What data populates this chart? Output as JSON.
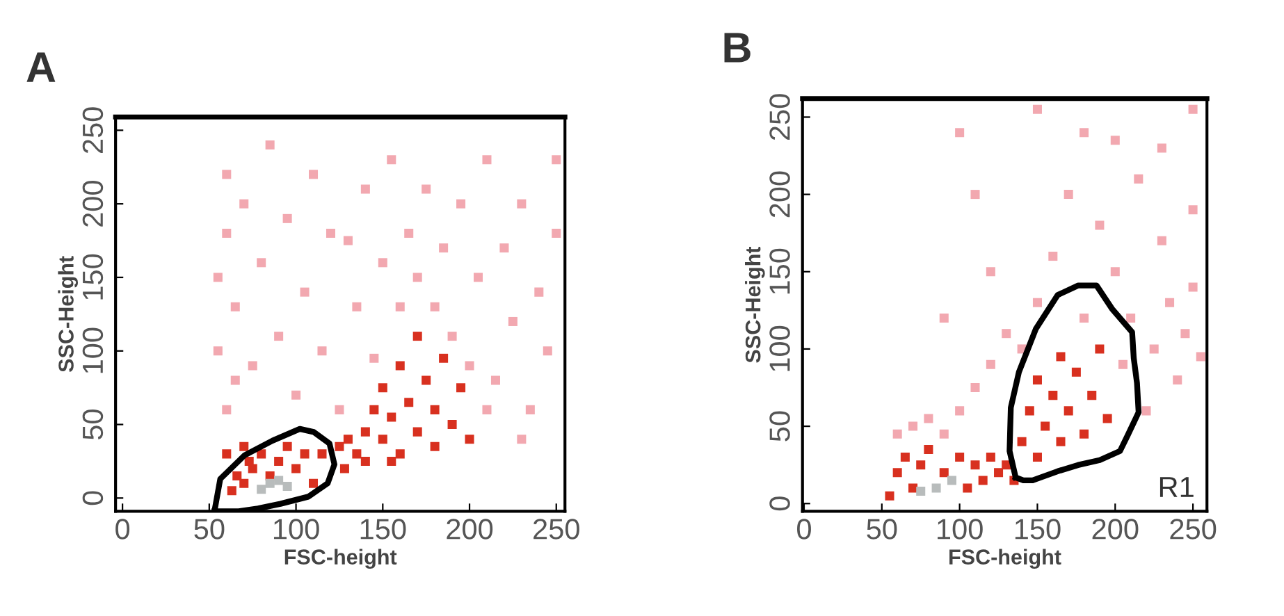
{
  "chart_data": [
    {
      "type": "scatter",
      "title": "A",
      "xlabel": "FSC-height",
      "ylabel": "SSC-Height",
      "xlim": [
        -4,
        255
      ],
      "ylim": [
        -9,
        259
      ],
      "xticks": [
        0,
        50,
        100,
        150,
        200,
        250
      ],
      "yticks": [
        0,
        50,
        100,
        150,
        200,
        250
      ],
      "grid": false,
      "marker": "square",
      "series": [
        {
          "color": "#f2a8b0",
          "x": [
            55,
            55,
            60,
            60,
            65,
            70,
            75,
            80,
            85,
            90,
            95,
            100,
            105,
            110,
            115,
            120,
            125,
            130,
            135,
            140,
            145,
            150,
            155,
            160,
            165,
            170,
            175,
            180,
            185,
            190,
            195,
            200,
            205,
            210,
            215,
            220,
            225,
            230,
            235,
            240,
            245,
            250,
            250,
            230,
            210,
            60,
            65
          ],
          "values": [
            150,
            100,
            220,
            180,
            130,
            200,
            90,
            160,
            240,
            110,
            190,
            70,
            140,
            220,
            100,
            180,
            60,
            175,
            130,
            210,
            95,
            160,
            230,
            130,
            180,
            150,
            210,
            130,
            170,
            110,
            200,
            90,
            150,
            230,
            80,
            170,
            120,
            200,
            60,
            140,
            100,
            180,
            230,
            40,
            60,
            60,
            80
          ]
        },
        {
          "color": "#d8301f",
          "x": [
            63,
            66,
            60,
            73,
            70,
            70,
            75,
            80,
            85,
            90,
            95,
            100,
            105,
            110,
            115,
            128,
            125,
            130,
            135,
            140,
            145,
            150,
            150,
            155,
            160,
            160,
            165,
            170,
            170,
            175,
            180,
            180,
            185,
            190,
            195,
            200,
            140,
            155
          ],
          "values": [
            5,
            15,
            30,
            25,
            10,
            35,
            20,
            30,
            15,
            25,
            35,
            20,
            30,
            10,
            30,
            20,
            35,
            40,
            30,
            45,
            60,
            40,
            75,
            55,
            30,
            90,
            65,
            45,
            110,
            80,
            60,
            35,
            95,
            50,
            75,
            40,
            25,
            25
          ]
        },
        {
          "color": "#b8bcbc",
          "x": [
            80,
            85,
            90,
            95
          ],
          "values": [
            6,
            10,
            12,
            8
          ]
        }
      ]
    },
    {
      "type": "scatter",
      "title": "B",
      "xlabel": "FSC-height",
      "ylabel": "SSC-Height",
      "xlim": [
        -1,
        259
      ],
      "ylim": [
        -5,
        262
      ],
      "xticks": [
        0,
        50,
        100,
        150,
        200,
        250
      ],
      "yticks": [
        0,
        50,
        100,
        150,
        200,
        250
      ],
      "grid": false,
      "marker": "square",
      "annotations": [
        "R1"
      ],
      "series": [
        {
          "color": "#f2a8b0",
          "x": [
            60,
            70,
            80,
            90,
            100,
            110,
            120,
            130,
            140,
            150,
            160,
            170,
            180,
            190,
            200,
            205,
            210,
            215,
            220,
            225,
            230,
            235,
            240,
            245,
            250,
            255,
            250,
            200,
            180,
            100,
            120,
            230,
            250,
            150,
            90,
            110
          ],
          "values": [
            45,
            50,
            55,
            45,
            60,
            75,
            90,
            110,
            100,
            130,
            160,
            200,
            120,
            180,
            150,
            90,
            120,
            210,
            60,
            100,
            170,
            130,
            80,
            110,
            190,
            95,
            140,
            235,
            240,
            240,
            150,
            230,
            255,
            255,
            120,
            200
          ]
        },
        {
          "color": "#d8301f",
          "x": [
            55,
            60,
            65,
            70,
            75,
            80,
            90,
            100,
            105,
            110,
            115,
            120,
            125,
            130,
            140,
            145,
            150,
            150,
            155,
            160,
            165,
            165,
            170,
            175,
            180,
            185,
            190,
            195,
            135
          ],
          "values": [
            5,
            20,
            30,
            10,
            25,
            35,
            20,
            30,
            10,
            25,
            15,
            30,
            20,
            25,
            40,
            60,
            30,
            80,
            50,
            70,
            40,
            95,
            60,
            85,
            45,
            70,
            100,
            55,
            15
          ]
        },
        {
          "color": "#b8bcbc",
          "x": [
            75,
            85,
            95
          ],
          "values": [
            8,
            10,
            15
          ]
        }
      ]
    }
  ]
}
